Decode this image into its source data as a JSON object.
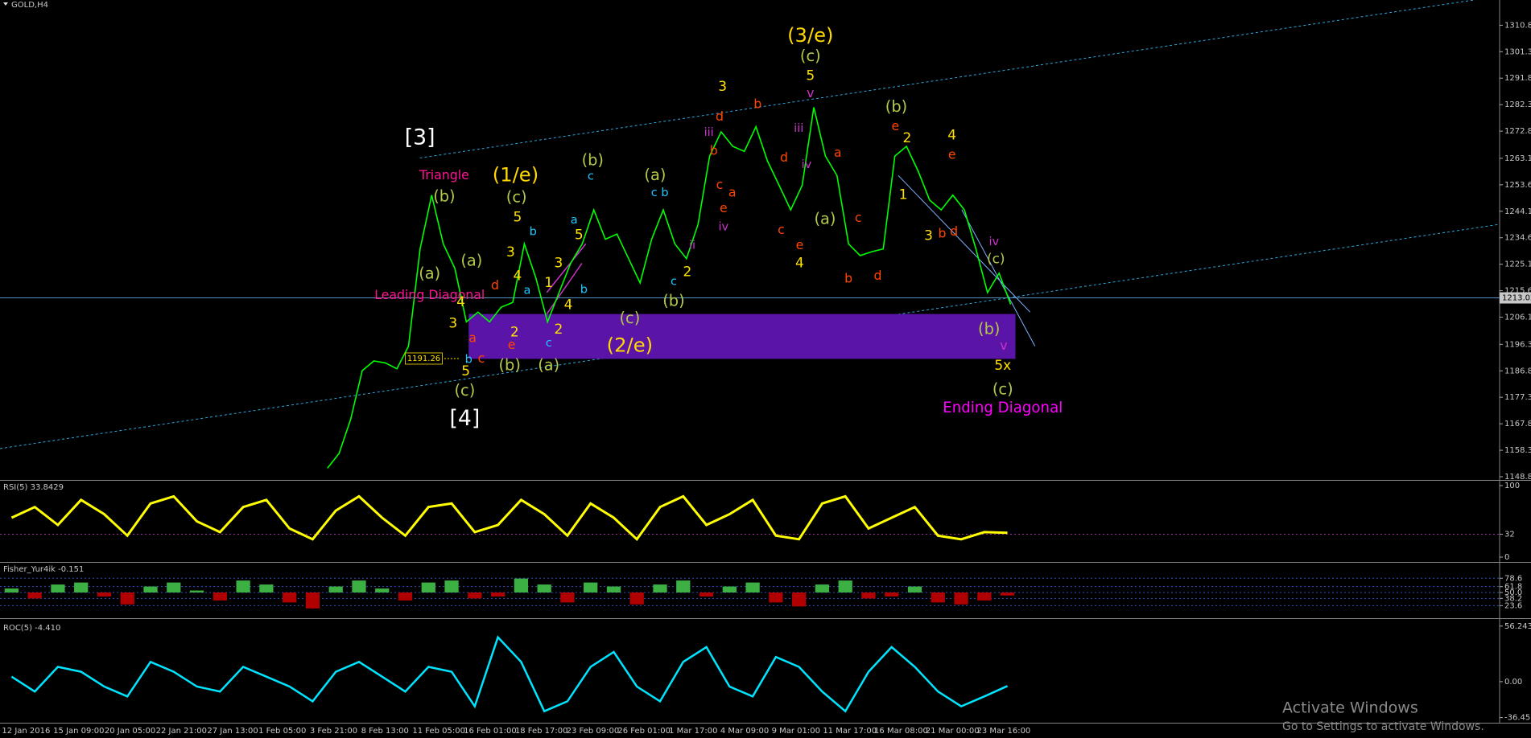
{
  "header": {
    "symbol": "GOLD,H4"
  },
  "main_chart": {
    "ylim": [
      1147.7,
      1319.9
    ],
    "yticks": [
      1310.85,
      1301.35,
      1291.85,
      1282.35,
      1272.85,
      {
        "value": 1263.1,
        "label": "1263.10"
      },
      {
        "value": 1253.6,
        "label": "1253.60"
      },
      {
        "value": 1244.1,
        "label": "1244.10"
      },
      {
        "value": 1234.6,
        "label": "1234.60"
      },
      {
        "value": 1225.1,
        "label": "1225.10"
      },
      {
        "value": 1215.6,
        "label": "1215.60"
      },
      {
        "value": 1206.1,
        "label": "1206.10"
      },
      1196.35,
      1186.85,
      1177.35,
      1167.85,
      1158.35,
      1148.85
    ],
    "current_price": 1213.02,
    "level": 1191.26,
    "color": "#00ff00",
    "close": [
      null,
      null,
      null,
      null,
      null,
      null,
      null,
      null,
      null,
      null,
      null,
      null,
      null,
      null,
      null,
      null,
      null,
      null,
      null,
      null,
      null,
      null,
      null,
      null,
      null,
      null,
      null,
      null,
      1151.9,
      1157.2,
      1169.4,
      1186.9,
      1190.4,
      1189.7,
      1187.6,
      1195.7,
      1230.6,
      1249.9,
      1232.4,
      1223.6,
      1204.4,
      1207.9,
      1204.4,
      1209.7,
      1211.4,
      1232.4,
      1220.1,
      1204.4,
      1214.9,
      1225.4,
      1232.4,
      1244.6,
      1234.1,
      1235.9,
      1227.1,
      1218.4,
      1234.1,
      1244.6,
      1232.4,
      1227.1,
      1239.4,
      1263.9,
      1272.6,
      1267.4,
      1265.6,
      1274.4,
      1262.1,
      1253.4,
      1244.6,
      1253.4,
      1281.4,
      1263.9,
      1256.9,
      1232.4,
      1228.2,
      1229.6,
      1230.6,
      1263.9,
      1267.4,
      1258.6,
      1248.1,
      1244.6,
      1249.9,
      1244.6,
      1230.6,
      1214.9,
      1221.9,
      1210.7
    ],
    "annotations": [
      {
        "text": "[3]",
        "color": "#ffffff"
      },
      {
        "text": "[4]",
        "color": "#ffffff"
      },
      {
        "text": "(1/e)",
        "color": "#ffd700"
      },
      {
        "text": "(2/e)",
        "color": "#ffd700"
      },
      {
        "text": "(3/e)",
        "color": "#ffd700"
      },
      {
        "text": "(c)",
        "color": "#b5c84a"
      },
      {
        "text": "5",
        "color": "#ffe000"
      },
      {
        "text": "v",
        "color": "#cc33cc"
      },
      {
        "text": "(b)",
        "color": "#b5c84a"
      },
      {
        "text": "c",
        "color": "#1ec8ff"
      },
      {
        "text": "(a)",
        "color": "#b5c84a"
      },
      {
        "text": "c",
        "color": "#1ec8ff"
      },
      {
        "text": "b",
        "color": "#1ec8ff"
      },
      {
        "text": "(c)",
        "color": "#b5c84a"
      },
      {
        "text": "5",
        "color": "#ffe000"
      },
      {
        "text": "(b)",
        "color": "#b5c84a"
      },
      {
        "text": "(a)",
        "color": "#b5c84a"
      },
      {
        "text": "(a)",
        "color": "#b5c84a"
      },
      {
        "text": "Triangle",
        "color": "#ff1493"
      },
      {
        "text": "Leading Diagonal",
        "color": "#ff1493"
      },
      {
        "text": "(c)",
        "color": "#b5c84a"
      },
      {
        "text": "5",
        "color": "#ffe000"
      },
      {
        "text": "(b)",
        "color": "#b5c84a"
      },
      {
        "text": "(a)",
        "color": "#b5c84a"
      },
      {
        "text": "(c)",
        "color": "#b5c84a"
      },
      {
        "text": "(b)",
        "color": "#b5c84a"
      },
      {
        "text": "3",
        "color": "#ffe000"
      },
      {
        "text": "(b)",
        "color": "#b5c84a"
      },
      {
        "text": "2",
        "color": "#ffe000"
      },
      {
        "text": "e",
        "color": "#ff4500"
      },
      {
        "text": "4",
        "color": "#ffe000"
      },
      {
        "text": "e",
        "color": "#ff4500"
      },
      {
        "text": "(a)",
        "color": "#b5c84a"
      },
      {
        "text": "c",
        "color": "#ff4500"
      },
      {
        "text": "b",
        "color": "#ff4500"
      },
      {
        "text": "d",
        "color": "#ff4500"
      },
      {
        "text": "4",
        "color": "#ffe000"
      },
      {
        "text": "c",
        "color": "#ff4500"
      },
      {
        "text": "e",
        "color": "#ff4500"
      },
      {
        "text": "d",
        "color": "#ff4500"
      },
      {
        "text": "a",
        "color": "#ff4500"
      },
      {
        "text": "b",
        "color": "#ff4500"
      },
      {
        "text": "iii",
        "color": "#cc33cc"
      },
      {
        "text": "iv",
        "color": "#cc33cc"
      },
      {
        "text": "iii",
        "color": "#cc33cc"
      },
      {
        "text": "iv",
        "color": "#cc33cc"
      },
      {
        "text": "ii",
        "color": "#cc33cc"
      },
      {
        "text": "2",
        "color": "#ffe000"
      },
      {
        "text": "c",
        "color": "#1ec8ff"
      },
      {
        "text": "1",
        "color": "#ffe000"
      },
      {
        "text": "3",
        "color": "#ffe000"
      },
      {
        "text": "b",
        "color": "#ff4500"
      },
      {
        "text": "d",
        "color": "#ff4500"
      },
      {
        "text": "(b)",
        "color": "#b5c84a"
      },
      {
        "text": "(c)",
        "color": "#b5c84a"
      },
      {
        "text": "5x",
        "color": "#ffe000"
      },
      {
        "text": "v",
        "color": "#cc33cc"
      },
      {
        "text": "Ending Diagonal",
        "color": "#ff00ff"
      },
      {
        "text": "iv",
        "color": "#cc33cc"
      },
      {
        "text": "(c)",
        "color": "#b5c84a"
      },
      {
        "text": "2",
        "color": "#ffe000"
      },
      {
        "text": "e",
        "color": "#ff4500"
      },
      {
        "text": "c",
        "color": "#1ec8ff"
      },
      {
        "text": "b",
        "color": "#1ec8ff"
      },
      {
        "text": "c",
        "color": "#ff4500"
      },
      {
        "text": "a",
        "color": "#ff4500"
      },
      {
        "text": "3",
        "color": "#ffe000"
      },
      {
        "text": "4",
        "color": "#ffe000"
      },
      {
        "text": "4",
        "color": "#ffe000"
      },
      {
        "text": "2",
        "color": "#ffe000"
      },
      {
        "text": "1",
        "color": "#ffe000"
      },
      {
        "text": "3",
        "color": "#ffe000"
      },
      {
        "text": "5",
        "color": "#ffe000"
      },
      {
        "text": "a",
        "color": "#1ec8ff"
      },
      {
        "text": "b",
        "color": "#1ec8ff"
      },
      {
        "text": "a",
        "color": "#1ec8ff"
      },
      {
        "text": "b",
        "color": "#1ec8ff"
      },
      {
        "text": "3",
        "color": "#ffe000"
      },
      {
        "text": "4",
        "color": "#ffe000"
      },
      {
        "text": "d",
        "color": "#ff4500"
      },
      {
        "text": "d",
        "color": "#ff4500"
      },
      {
        "text": "b",
        "color": "#ff4500"
      },
      {
        "text": "c",
        "color": "#ff4500"
      },
      {
        "text": "a",
        "color": "#ff4500"
      },
      {
        "text": "e",
        "color": "#ff4500"
      }
    ]
  },
  "rsi": {
    "label": "RSI(5) 33.8429",
    "ylim": [
      0,
      100
    ],
    "yticks": [
      100,
      32,
      0
    ],
    "color": "#ffff00",
    "values": [
      55,
      70,
      45,
      80,
      60,
      30,
      75,
      85,
      50,
      35,
      70,
      80,
      40,
      25,
      65,
      85,
      55,
      30,
      70,
      75,
      35,
      45,
      80,
      60,
      30,
      75,
      55,
      25,
      70,
      85,
      45,
      60,
      80,
      30,
      25,
      75,
      85,
      40,
      55,
      70,
      30,
      25,
      35,
      34
    ]
  },
  "fisher": {
    "label": "Fisher_Yur4ik -0.151",
    "ylim": [
      0,
      100
    ],
    "yticks": [
      78.6,
      61.8,
      {
        "value": 50,
        "label": "50.0"
      },
      38.2,
      23.6
    ],
    "up_color": "#3cb043",
    "down_color": "#b00000",
    "values": [
      58,
      38,
      66,
      70,
      42,
      26,
      62,
      70,
      54,
      34,
      74,
      66,
      30,
      18,
      62,
      74,
      58,
      34,
      70,
      74,
      38,
      42,
      78,
      66,
      30,
      70,
      62,
      26,
      66,
      74,
      42,
      62,
      70,
      30,
      22,
      66,
      74,
      38,
      42,
      62,
      30,
      26,
      34,
      44
    ]
  },
  "roc": {
    "label": "ROC(5) -4.410",
    "ylim": [
      -40.5,
      62.2
    ],
    "yticks": [
      56.243,
      {
        "value": 0,
        "label": "0.00"
      },
      -36.453
    ],
    "color": "#00e5ff",
    "values": [
      5,
      -10,
      15,
      10,
      -5,
      -15,
      20,
      10,
      -5,
      -10,
      15,
      5,
      -5,
      -20,
      10,
      20,
      5,
      -10,
      15,
      10,
      -25,
      45,
      20,
      -30,
      -20,
      15,
      30,
      -5,
      -20,
      20,
      35,
      -5,
      -15,
      25,
      15,
      -10,
      -30,
      10,
      35,
      15,
      -10,
      -25,
      -15,
      -4.41
    ]
  },
  "time_axis": {
    "labels": [
      "12 Jan 2016",
      "15 Jan 09:00",
      "20 Jan 05:00",
      "22 Jan 21:00",
      "27 Jan 13:00",
      "1 Feb 05:00",
      "3 Feb 21:00",
      "8 Feb 13:00",
      "11 Feb 05:00",
      "16 Feb 01:00",
      "18 Feb 17:00",
      "23 Feb 09:00",
      "26 Feb 01:00",
      "1 Mar 17:00",
      "4 Mar 09:00",
      "9 Mar 01:00",
      "11 Mar 17:00",
      "16 Mar 08:00",
      "21 Mar 00:00",
      "23 Mar 16:00"
    ]
  },
  "watermark": {
    "title": "Activate Windows",
    "subtitle": "Go to Settings to activate Windows."
  }
}
